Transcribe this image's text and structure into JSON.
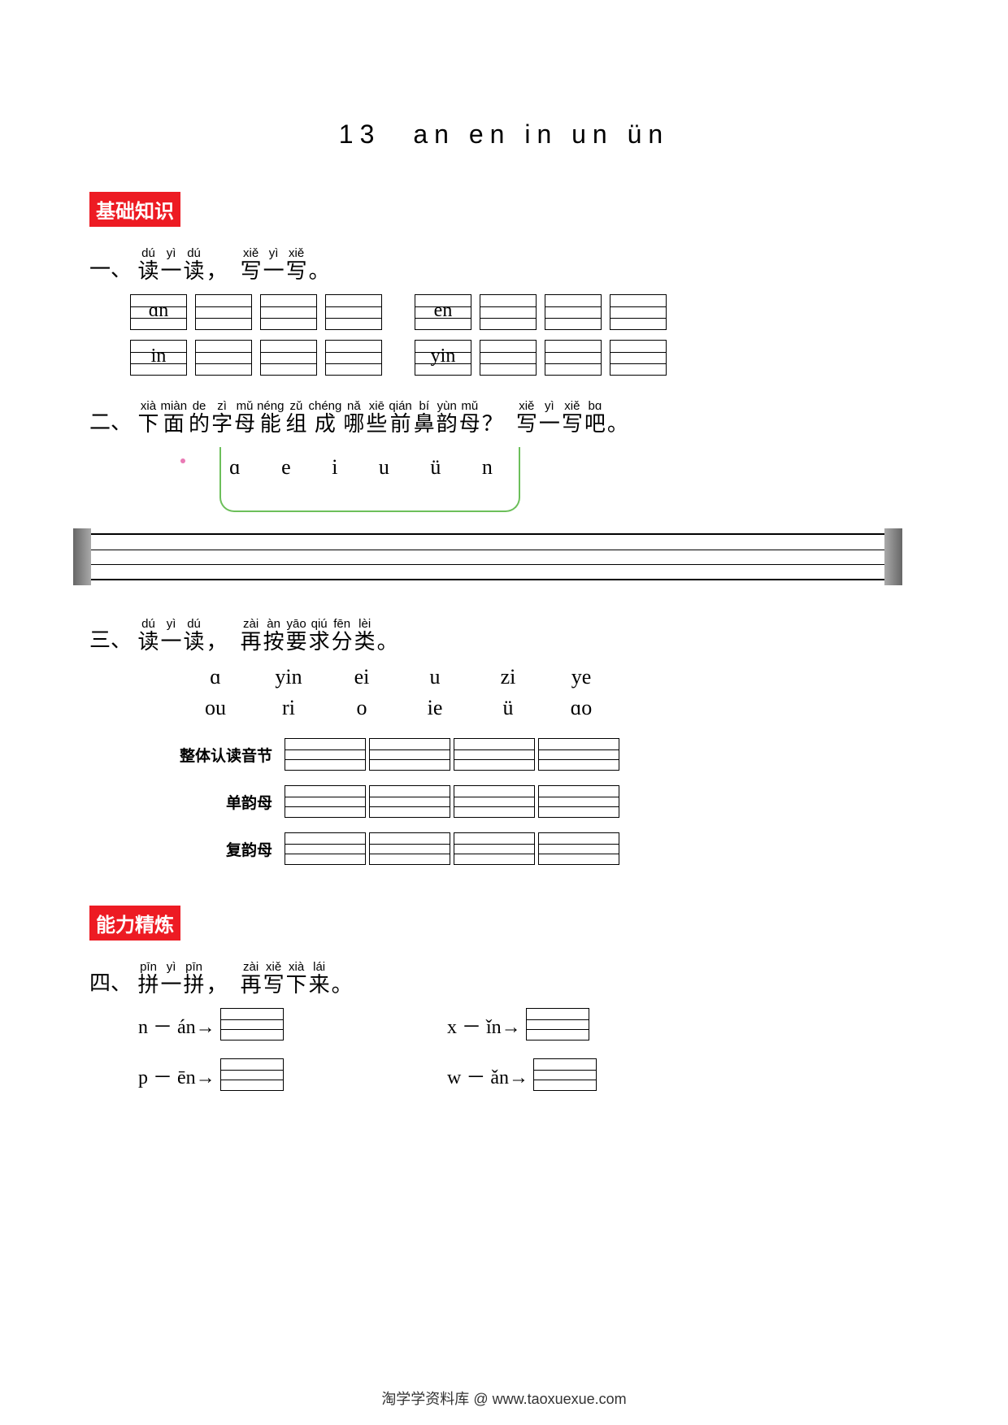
{
  "title": "13　an en in un ün",
  "badges": {
    "basic": "基础知识",
    "skill": "能力精炼"
  },
  "q1": {
    "num": "一、",
    "ruby": [
      {
        "py": "dú",
        "hz": "读"
      },
      {
        "py": "yì",
        "hz": "一"
      },
      {
        "py": "dú",
        "hz": "读"
      },
      {
        "hz": "，"
      },
      {
        "py": "xiě",
        "hz": "写"
      },
      {
        "py": "yì",
        "hz": "一"
      },
      {
        "py": "xiě",
        "hz": "写"
      },
      {
        "hz": "。"
      }
    ],
    "rows": [
      [
        "ɑn",
        "",
        "",
        "",
        "en",
        "",
        "",
        ""
      ],
      [
        "in",
        "",
        "",
        "",
        "yin",
        "",
        "",
        ""
      ]
    ]
  },
  "q2": {
    "num": "二、",
    "ruby": [
      {
        "py": "xià",
        "hz": "下"
      },
      {
        "py": "miàn",
        "hz": "面"
      },
      {
        "py": "de",
        "hz": "的"
      },
      {
        "py": "zì",
        "hz": "字"
      },
      {
        "py": "mǔ",
        "hz": "母"
      },
      {
        "py": "néng",
        "hz": "能"
      },
      {
        "py": "zǔ",
        "hz": "组"
      },
      {
        "py": "chéng",
        "hz": "成"
      },
      {
        "py": "nǎ",
        "hz": "哪"
      },
      {
        "py": "xiē",
        "hz": "些"
      },
      {
        "py": "qián",
        "hz": "前"
      },
      {
        "py": "bí",
        "hz": "鼻"
      },
      {
        "py": "yùn",
        "hz": "韵"
      },
      {
        "py": "mǔ",
        "hz": "母"
      },
      {
        "hz": "？"
      },
      {
        "py": "xiě",
        "hz": "写"
      },
      {
        "py": "yì",
        "hz": "一"
      },
      {
        "py": "xiě",
        "hz": "写"
      },
      {
        "py": "bɑ",
        "hz": "吧"
      },
      {
        "hz": "。"
      }
    ],
    "letters": "ɑ e i u ü n"
  },
  "q3": {
    "num": "三、",
    "ruby": [
      {
        "py": "dú",
        "hz": "读"
      },
      {
        "py": "yì",
        "hz": "一"
      },
      {
        "py": "dú",
        "hz": "读"
      },
      {
        "hz": "，"
      },
      {
        "py": "zài",
        "hz": "再"
      },
      {
        "py": "àn",
        "hz": "按"
      },
      {
        "py": "yāo",
        "hz": "要"
      },
      {
        "py": "qiú",
        "hz": "求"
      },
      {
        "py": "fēn",
        "hz": "分"
      },
      {
        "py": "lèi",
        "hz": "类"
      },
      {
        "hz": "。"
      }
    ],
    "row1": [
      "ɑ",
      "yin",
      "ei",
      "u",
      "zi",
      "ye"
    ],
    "row2": [
      "ou",
      "ri",
      "o",
      "ie",
      "ü",
      "ɑo"
    ],
    "cats": [
      {
        "label": "整体认读音节",
        "n": 4
      },
      {
        "label": "单韵母",
        "n": 4
      },
      {
        "label": "复韵母",
        "n": 4
      }
    ]
  },
  "q4": {
    "num": "四、",
    "ruby": [
      {
        "py": "pīn",
        "hz": "拼"
      },
      {
        "py": "yì",
        "hz": "一"
      },
      {
        "py": "pīn",
        "hz": "拼"
      },
      {
        "hz": "，"
      },
      {
        "py": "zài",
        "hz": "再"
      },
      {
        "py": "xiě",
        "hz": "写"
      },
      {
        "py": "xià",
        "hz": "下"
      },
      {
        "py": "lái",
        "hz": "来"
      },
      {
        "hz": "。"
      }
    ],
    "pairs": [
      [
        {
          "l": "n",
          "r": "án"
        },
        {
          "l": "x",
          "r": "ǐn"
        }
      ],
      [
        {
          "l": "p",
          "r": "ēn"
        },
        {
          "l": "w",
          "r": "ǎn"
        }
      ]
    ]
  },
  "footer": "淘学学资料库 @ www.taoxuexue.com"
}
